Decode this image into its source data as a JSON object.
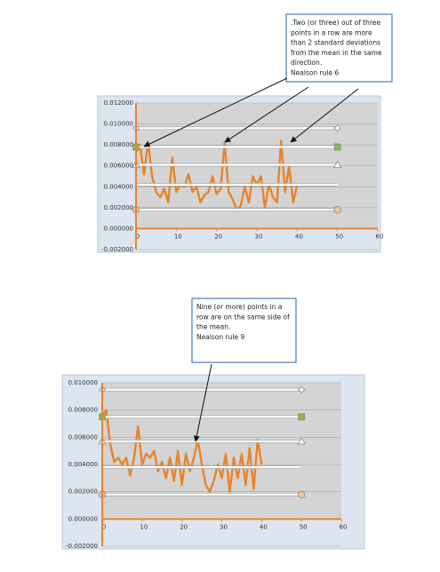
{
  "chart_data": [
    {
      "type": "line",
      "xlim": [
        0,
        60
      ],
      "xticks": [
        0,
        10,
        20,
        30,
        40,
        50,
        60
      ],
      "ylim": [
        -0.002,
        0.012
      ],
      "yticks": [
        {
          "value": -0.002,
          "label": "-0.002000"
        },
        {
          "value": 0,
          "label": "0.000000"
        },
        {
          "value": 0.002,
          "label": "0.002000"
        },
        {
          "value": 0.004,
          "label": "0.004000"
        },
        {
          "value": 0.006,
          "label": "0.006000"
        },
        {
          "value": 0.008,
          "label": "0.008000"
        },
        {
          "value": 0.01,
          "label": "0.010000"
        },
        {
          "value": 0.012,
          "label": "0.012000"
        }
      ],
      "grid": true,
      "series": [
        {
          "color": "#e8842c",
          "marker": "none",
          "x": [
            0,
            1,
            2,
            3,
            4,
            5,
            6,
            7,
            8,
            9,
            10,
            11,
            12,
            13,
            14,
            15,
            16,
            17,
            18,
            19,
            20,
            21,
            22,
            23,
            24,
            25,
            26,
            27,
            28,
            29,
            30,
            31,
            32,
            33,
            34,
            35,
            36,
            37,
            38,
            39,
            40
          ],
          "values": [
            0.0073,
            0.008,
            0.0052,
            0.0083,
            0.005,
            0.0035,
            0.003,
            0.0038,
            0.0025,
            0.0068,
            0.0035,
            0.0042,
            0.004,
            0.0052,
            0.0035,
            0.004,
            0.0025,
            0.0032,
            0.0035,
            0.005,
            0.0033,
            0.0038,
            0.0082,
            0.0035,
            0.0028,
            0.0018,
            0.0022,
            0.004,
            0.0025,
            0.005,
            0.0042,
            0.005,
            0.002,
            0.0042,
            0.003,
            0.0025,
            0.0084,
            0.0035,
            0.006,
            0.0025,
            0.0042
          ]
        },
        {
          "color": "#ffffff",
          "marker": "diamond",
          "x": [
            0,
            50
          ],
          "values": [
            0.0096,
            0.0096
          ]
        },
        {
          "color": "#ffffff",
          "marker": "square",
          "x": [
            0,
            50
          ],
          "values": [
            0.0078,
            0.0078
          ]
        },
        {
          "color": "#ffffff",
          "marker": "triangle",
          "x": [
            0,
            50
          ],
          "values": [
            0.0061,
            0.0061
          ]
        },
        {
          "color": "#ffffff",
          "marker": "none",
          "x": [
            0,
            50
          ],
          "values": [
            0.0042,
            0.0042
          ]
        },
        {
          "color": "#ffffff",
          "marker": "circle",
          "x": [
            0,
            50
          ],
          "values": [
            0.0018,
            0.0018
          ]
        }
      ],
      "annotations": [
        {
          "lines": [
            ".Two (or three) out of three",
            "points in a row are more",
            "than 2 standard deviations",
            "from the mean in the same",
            "direction.",
            "Nealson rule 6"
          ]
        }
      ]
    },
    {
      "type": "line",
      "xlim": [
        0,
        60
      ],
      "xticks": [
        0,
        10,
        20,
        30,
        40,
        50,
        60
      ],
      "ylim": [
        -0.002,
        0.01
      ],
      "yticks": [
        {
          "value": -0.002,
          "label": "-0.002000"
        },
        {
          "value": 0,
          "label": "0.000000"
        },
        {
          "value": 0.002,
          "label": "0.002000"
        },
        {
          "value": 0.004,
          "label": "0.004000"
        },
        {
          "value": 0.006,
          "label": "0.006000"
        },
        {
          "value": 0.008,
          "label": "0.008000"
        },
        {
          "value": 0.01,
          "label": "0.010000"
        }
      ],
      "grid": true,
      "series": [
        {
          "color": "#e8842c",
          "marker": "none",
          "x": [
            0,
            1,
            2,
            3,
            4,
            5,
            6,
            7,
            8,
            9,
            10,
            11,
            12,
            13,
            14,
            15,
            16,
            17,
            18,
            19,
            20,
            21,
            22,
            23,
            24,
            25,
            26,
            27,
            28,
            29,
            30,
            31,
            32,
            33,
            34,
            35,
            36,
            37,
            38,
            39,
            40
          ],
          "values": [
            0.0075,
            0.008,
            0.0055,
            0.0042,
            0.0045,
            0.004,
            0.0045,
            0.0032,
            0.0045,
            0.0068,
            0.004,
            0.0048,
            0.0045,
            0.005,
            0.0035,
            0.0042,
            0.003,
            0.0045,
            0.0028,
            0.005,
            0.0025,
            0.0048,
            0.0035,
            0.0045,
            0.0058,
            0.004,
            0.0025,
            0.002,
            0.0028,
            0.004,
            0.003,
            0.0048,
            0.002,
            0.0045,
            0.003,
            0.0048,
            0.0025,
            0.0052,
            0.0022,
            0.0058,
            0.004
          ]
        },
        {
          "color": "#ffffff",
          "marker": "diamond",
          "x": [
            0,
            50
          ],
          "values": [
            0.0095,
            0.0095
          ]
        },
        {
          "color": "#ffffff",
          "marker": "square",
          "x": [
            0,
            50
          ],
          "values": [
            0.0075,
            0.0075
          ]
        },
        {
          "color": "#ffffff",
          "marker": "triangle",
          "x": [
            0,
            50
          ],
          "values": [
            0.0057,
            0.0057
          ]
        },
        {
          "color": "#ffffff",
          "marker": "none",
          "x": [
            0,
            50
          ],
          "values": [
            0.0038,
            0.0038
          ]
        },
        {
          "color": "#ffffff",
          "marker": "circle",
          "x": [
            0,
            50
          ],
          "values": [
            0.0018,
            0.0018
          ]
        }
      ],
      "annotations": [
        {
          "lines": [
            "Nine (or more) points in a",
            "row are on the same side of",
            "the mean.",
            "Nealson rule 9"
          ]
        }
      ]
    }
  ]
}
